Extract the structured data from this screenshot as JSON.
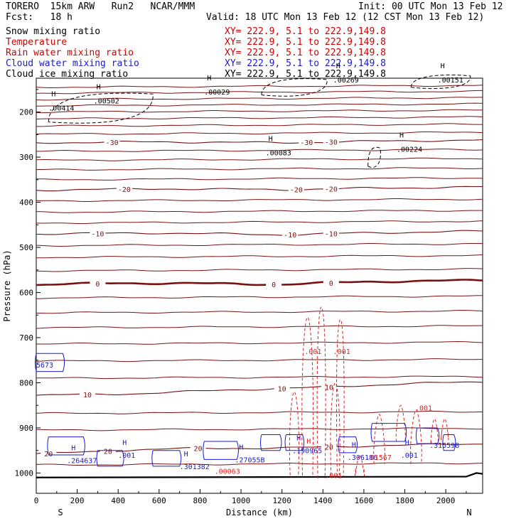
{
  "header": {
    "model": "TORERO",
    "resolution": "15km ARW",
    "run": "Run2",
    "org": "NCAR/MMM",
    "init": "Init: 00 UTC Mon 13 Feb 12",
    "fcst_label": "Fcst:",
    "fcst_value": "18 h",
    "valid": "Valid: 18 UTC Mon 13 Feb 12 (12 CST Mon 13 Feb 12)"
  },
  "fields": [
    {
      "name": "Snow mixing ratio",
      "xy": "XY= 222.9, 5.1 to 222.9,149.8",
      "color": "#000000"
    },
    {
      "name": "Temperature",
      "xy": "XY= 222.9, 5.1 to 222.9,149.8",
      "color": "#cc0000"
    },
    {
      "name": "Rain water mixing ratio",
      "xy": "XY= 222.9, 5.1 to 222.9,149.8",
      "color": "#cc0000"
    },
    {
      "name": "Cloud water mixing ratio",
      "xy": "XY= 222.9, 5.1 to 222.9,149.8",
      "color": "#0000cc"
    },
    {
      "name": "Cloud ice mixing ratio",
      "xy": "XY= 222.9, 5.1 to 222.9,149.8",
      "color": "#000000"
    }
  ],
  "colors": {
    "temperature": "#7a1010",
    "freezing": "#7a1010",
    "rain": "#dd2222",
    "cloud": "#1a1acc",
    "ice": "#000000",
    "ground": "#000000"
  },
  "chart_data": {
    "type": "cross-section",
    "xlabel": "Distance (km)",
    "ylabel": "Pressure (hPa)",
    "xlim": [
      0,
      2180
    ],
    "ylim": [
      1045,
      125
    ],
    "x_ticks": [
      0,
      200,
      400,
      600,
      800,
      1000,
      1200,
      1400,
      1600,
      1800,
      2000
    ],
    "y_ticks": [
      200,
      300,
      400,
      500,
      600,
      700,
      800,
      900,
      1000
    ],
    "left_end": "S",
    "right_end": "N",
    "temperature_contours": [
      {
        "label": "-30",
        "p": [
          [
            0,
            268
          ],
          [
            600,
            266
          ],
          [
            1200,
            268
          ],
          [
            1600,
            265
          ],
          [
            2180,
            262
          ]
        ],
        "label_at": [
          [
            370,
            -30
          ],
          [
            1320,
            -30
          ],
          [
            1440,
            -30
          ]
        ]
      },
      {
        "label": "-20",
        "p": [
          [
            0,
            373
          ],
          [
            600,
            370
          ],
          [
            1200,
            372
          ],
          [
            1600,
            369
          ],
          [
            2180,
            366
          ]
        ],
        "label_at": [
          [
            430,
            -20
          ],
          [
            1270,
            -20
          ],
          [
            1440,
            -20
          ]
        ]
      },
      {
        "label": "-10",
        "p": [
          [
            0,
            470
          ],
          [
            600,
            468
          ],
          [
            1200,
            472
          ],
          [
            1600,
            468
          ],
          [
            2180,
            464
          ]
        ],
        "label_at": [
          [
            300,
            -10
          ],
          [
            1240,
            -10
          ],
          [
            1440,
            -10
          ]
        ]
      },
      {
        "label": "0",
        "p": [
          [
            0,
            583
          ],
          [
            400,
            579
          ],
          [
            800,
            580
          ],
          [
            1200,
            582
          ],
          [
            1600,
            576
          ],
          [
            2180,
            573
          ]
        ],
        "label_at": [
          [
            300,
            0
          ],
          [
            1160,
            0
          ],
          [
            1440,
            0
          ]
        ],
        "bold": true
      },
      {
        "label": "10",
        "p": [
          [
            0,
            828
          ],
          [
            500,
            824
          ],
          [
            1000,
            815
          ],
          [
            1400,
            810
          ],
          [
            1800,
            802
          ],
          [
            2180,
            798
          ]
        ],
        "label_at": [
          [
            250,
            10
          ],
          [
            1200,
            10
          ],
          [
            1430,
            10
          ]
        ]
      },
      {
        "label": "20",
        "p": [
          [
            0,
            958
          ],
          [
            400,
            950
          ],
          [
            800,
            945
          ],
          [
            1200,
            945
          ],
          [
            1600,
            940
          ],
          [
            2180,
            935
          ]
        ],
        "label_at": [
          [
            60,
            20
          ],
          [
            350,
            20
          ],
          [
            790,
            20
          ],
          [
            1430,
            20
          ]
        ]
      }
    ],
    "cloud_water_labels": [
      ".264637",
      ".001",
      ".301382",
      ".27055B",
      ".190965",
      ".306186",
      ".001",
      ".315598",
      "5673"
    ],
    "rain_labels": [
      ".001",
      ".001",
      ".01567",
      ".001",
      ".001",
      ".00063"
    ],
    "snow_labels": [
      ".00414",
      ".00502",
      ".00029",
      ".00083",
      ".00269",
      ".00224",
      ".00151"
    ],
    "highs": [
      "H",
      "H",
      "H",
      "H",
      "H",
      "H",
      "H",
      "H",
      "H",
      "H",
      "H",
      "H",
      "H",
      "H",
      "H"
    ]
  }
}
